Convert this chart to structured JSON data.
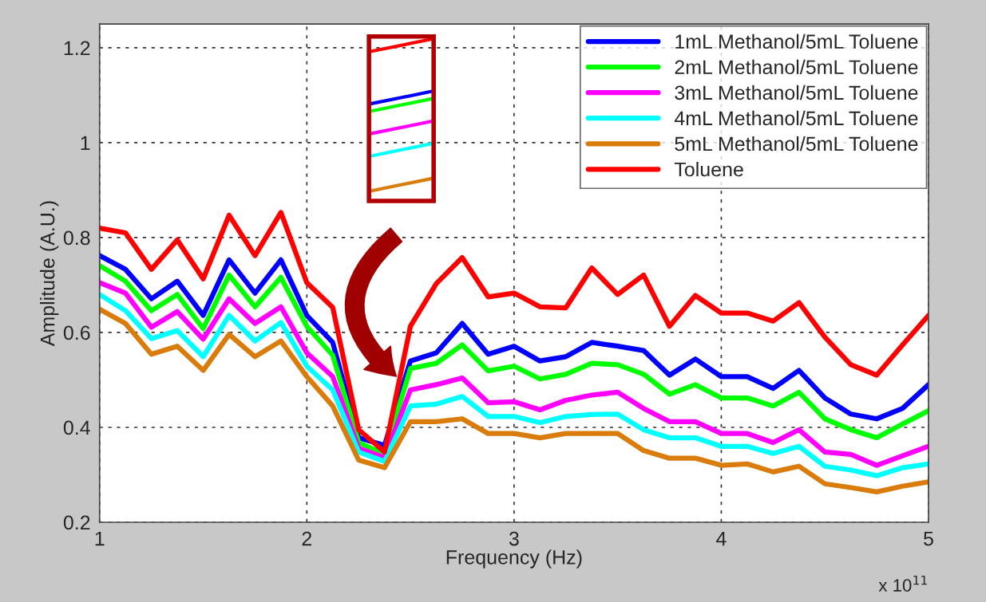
{
  "chart_data": {
    "type": "line",
    "xlabel": "Frequency (Hz)",
    "ylabel": "Amplitude (A.U.)",
    "x": [
      1,
      1.125,
      1.25,
      1.375,
      1.5,
      1.625,
      1.75,
      1.875,
      2,
      2.125,
      2.25,
      2.375,
      2.5,
      2.625,
      2.75,
      2.875,
      3,
      3.125,
      3.25,
      3.375,
      3.5,
      3.625,
      3.75,
      3.875,
      4,
      4.125,
      4.25,
      4.375,
      4.5,
      4.625,
      4.75,
      4.875,
      5
    ],
    "series": [
      {
        "name": "1mL Methanol/5mL Toluene",
        "color": "#0000ff",
        "values": [
          0.762,
          0.733,
          0.671,
          0.708,
          0.636,
          0.753,
          0.683,
          0.753,
          0.636,
          0.579,
          0.378,
          0.362,
          0.54,
          0.557,
          0.619,
          0.554,
          0.571,
          0.54,
          0.549,
          0.579,
          0.571,
          0.562,
          0.51,
          0.544,
          0.507,
          0.507,
          0.482,
          0.52,
          0.462,
          0.428,
          0.418,
          0.44,
          0.49
        ]
      },
      {
        "name": "2mL Methanol/5mL Toluene",
        "color": "#00ff00",
        "values": [
          0.741,
          0.708,
          0.646,
          0.68,
          0.608,
          0.721,
          0.654,
          0.716,
          0.613,
          0.552,
          0.368,
          0.343,
          0.524,
          0.535,
          0.574,
          0.519,
          0.529,
          0.502,
          0.512,
          0.535,
          0.532,
          0.512,
          0.47,
          0.49,
          0.462,
          0.462,
          0.445,
          0.474,
          0.418,
          0.395,
          0.378,
          0.407,
          0.435
        ]
      },
      {
        "name": "3mL Methanol/5mL Toluene",
        "color": "#ff00ff",
        "values": [
          0.705,
          0.683,
          0.611,
          0.644,
          0.586,
          0.671,
          0.619,
          0.654,
          0.557,
          0.507,
          0.356,
          0.336,
          0.479,
          0.49,
          0.504,
          0.452,
          0.454,
          0.437,
          0.457,
          0.468,
          0.474,
          0.44,
          0.412,
          0.412,
          0.387,
          0.387,
          0.368,
          0.395,
          0.348,
          0.343,
          0.32,
          0.34,
          0.36
        ]
      },
      {
        "name": "4mL Methanol/5mL Toluene",
        "color": "#00ffff",
        "values": [
          0.68,
          0.646,
          0.587,
          0.604,
          0.549,
          0.636,
          0.582,
          0.621,
          0.529,
          0.479,
          0.348,
          0.328,
          0.445,
          0.449,
          0.465,
          0.423,
          0.423,
          0.41,
          0.423,
          0.427,
          0.428,
          0.395,
          0.378,
          0.378,
          0.36,
          0.36,
          0.345,
          0.36,
          0.318,
          0.31,
          0.298,
          0.315,
          0.323
        ]
      },
      {
        "name": "5mL Methanol/5mL Toluene",
        "color": "#d97c0c",
        "values": [
          0.649,
          0.619,
          0.554,
          0.571,
          0.52,
          0.596,
          0.549,
          0.582,
          0.507,
          0.445,
          0.331,
          0.315,
          0.412,
          0.412,
          0.418,
          0.387,
          0.387,
          0.378,
          0.387,
          0.387,
          0.387,
          0.351,
          0.335,
          0.335,
          0.32,
          0.323,
          0.306,
          0.318,
          0.281,
          0.273,
          0.264,
          0.276,
          0.285
        ]
      },
      {
        "name": "Toluene",
        "color": "#ff0000",
        "values": [
          0.82,
          0.81,
          0.733,
          0.795,
          0.713,
          0.847,
          0.762,
          0.853,
          0.705,
          0.653,
          0.395,
          0.348,
          0.613,
          0.703,
          0.758,
          0.675,
          0.683,
          0.654,
          0.652,
          0.736,
          0.68,
          0.721,
          0.613,
          0.678,
          0.641,
          0.641,
          0.624,
          0.663,
          0.59,
          0.532,
          0.51,
          0.574,
          0.636
        ]
      }
    ],
    "xlim": [
      1,
      5
    ],
    "xticks": [
      1,
      2,
      3,
      4,
      5
    ],
    "ylim": [
      0.2,
      1.25
    ],
    "yticks": [
      0.2,
      0.4,
      0.6,
      0.8,
      {
        "value": 1,
        "label": "1"
      },
      1.2
    ],
    "annotations": [
      "x 10$^{11}$"
    ],
    "grid": true,
    "legend": "top right",
    "line_style": "solid",
    "marker": "none"
  }
}
